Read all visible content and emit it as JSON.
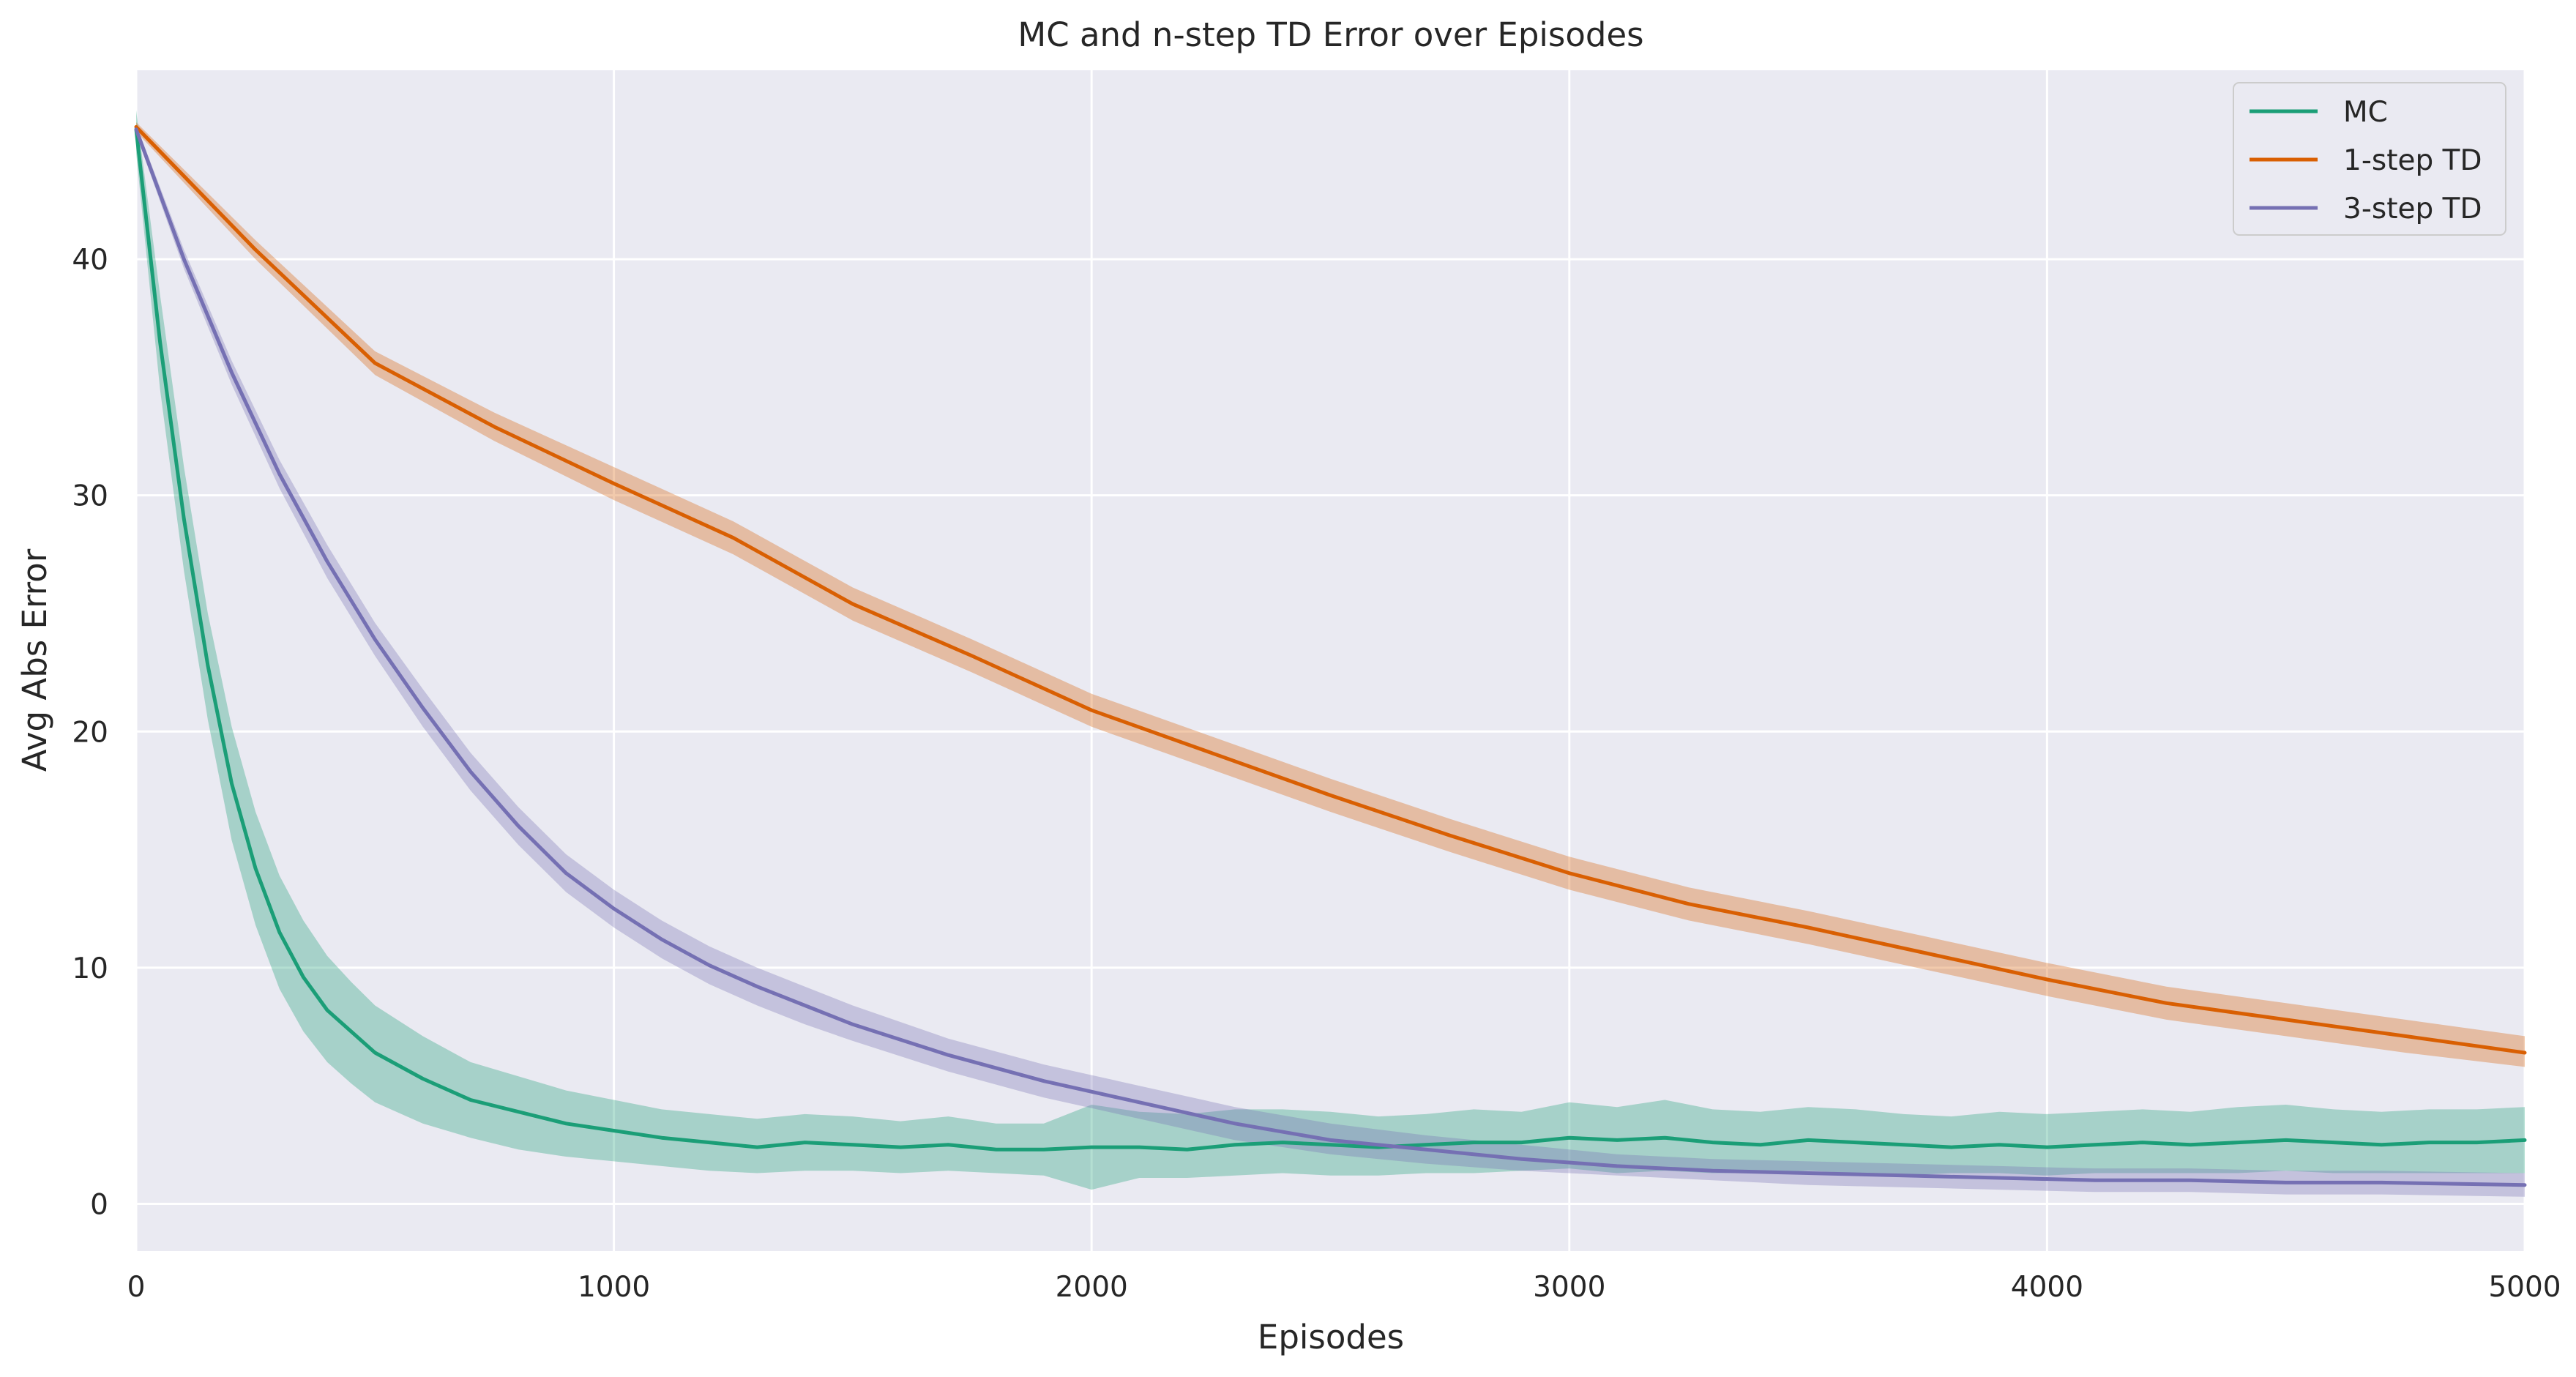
{
  "chart_data": {
    "type": "line",
    "title": "MC and n-step TD Error over Episodes",
    "xlabel": "Episodes",
    "ylabel": "Avg Abs Error",
    "xlim": [
      0,
      5000
    ],
    "ylim": [
      -2,
      48
    ],
    "xticks": [
      "0",
      "1000",
      "2000",
      "3000",
      "4000",
      "5000"
    ],
    "yticks": [
      "0",
      "10",
      "20",
      "30",
      "40"
    ],
    "grid": true,
    "background": "#eaeaf2",
    "legend_position": "top-right",
    "series": [
      {
        "name": "MC",
        "color": "#1b9e77",
        "x": [
          0,
          50,
          100,
          150,
          200,
          250,
          300,
          350,
          400,
          450,
          500,
          600,
          700,
          800,
          900,
          1000,
          1100,
          1200,
          1300,
          1400,
          1500,
          1600,
          1700,
          1800,
          1900,
          2000,
          2100,
          2200,
          2300,
          2400,
          2500,
          2600,
          2700,
          2800,
          2900,
          3000,
          3100,
          3200,
          3300,
          3400,
          3500,
          3600,
          3700,
          3800,
          3900,
          4000,
          4100,
          4200,
          4300,
          4400,
          4500,
          4600,
          4700,
          4800,
          4900,
          5000
        ],
        "y": [
          45.5,
          36.5,
          29.0,
          22.8,
          17.8,
          14.2,
          11.5,
          9.6,
          8.2,
          7.3,
          6.4,
          5.3,
          4.4,
          3.9,
          3.4,
          3.1,
          2.8,
          2.6,
          2.4,
          2.6,
          2.5,
          2.4,
          2.5,
          2.3,
          2.3,
          2.4,
          2.4,
          2.3,
          2.5,
          2.6,
          2.5,
          2.4,
          2.5,
          2.6,
          2.6,
          2.8,
          2.7,
          2.8,
          2.6,
          2.5,
          2.7,
          2.6,
          2.5,
          2.4,
          2.5,
          2.4,
          2.5,
          2.6,
          2.5,
          2.6,
          2.7,
          2.6,
          2.5,
          2.6,
          2.6,
          2.7
        ],
        "lower": [
          44.5,
          34.5,
          26.8,
          20.5,
          15.4,
          11.8,
          9.1,
          7.3,
          6.0,
          5.1,
          4.3,
          3.4,
          2.8,
          2.3,
          2.0,
          1.8,
          1.6,
          1.4,
          1.3,
          1.4,
          1.4,
          1.3,
          1.4,
          1.3,
          1.2,
          0.6,
          1.1,
          1.1,
          1.2,
          1.3,
          1.2,
          1.2,
          1.3,
          1.3,
          1.4,
          1.5,
          1.3,
          1.4,
          1.3,
          1.3,
          1.4,
          1.3,
          1.2,
          1.3,
          1.3,
          1.2,
          1.3,
          1.3,
          1.3,
          1.3,
          1.4,
          1.3,
          1.3,
          1.3,
          1.3,
          1.3
        ],
        "upper": [
          46.3,
          38.5,
          31.2,
          25.0,
          20.2,
          16.6,
          13.9,
          12.0,
          10.5,
          9.4,
          8.4,
          7.1,
          6.0,
          5.4,
          4.8,
          4.4,
          4.0,
          3.8,
          3.6,
          3.8,
          3.7,
          3.5,
          3.7,
          3.4,
          3.4,
          4.2,
          3.9,
          3.8,
          4.0,
          4.0,
          3.9,
          3.7,
          3.8,
          4.0,
          3.9,
          4.3,
          4.1,
          4.4,
          4.0,
          3.9,
          4.1,
          4.0,
          3.8,
          3.7,
          3.9,
          3.8,
          3.9,
          4.0,
          3.9,
          4.1,
          4.2,
          4.0,
          3.9,
          4.0,
          4.0,
          4.1
        ]
      },
      {
        "name": "1-step TD",
        "color": "#d95f02",
        "x": [
          0,
          250,
          500,
          750,
          1000,
          1250,
          1500,
          1750,
          2000,
          2250,
          2500,
          2750,
          3000,
          3250,
          3500,
          3750,
          4000,
          4250,
          4500,
          4750,
          5000
        ],
        "y": [
          45.6,
          40.4,
          35.6,
          32.9,
          30.5,
          28.2,
          25.4,
          23.2,
          20.9,
          19.1,
          17.3,
          15.6,
          14.0,
          12.7,
          11.7,
          10.6,
          9.5,
          8.5,
          7.8,
          7.1,
          6.4
        ],
        "lower": [
          45.4,
          40.0,
          35.1,
          32.3,
          29.8,
          27.5,
          24.7,
          22.5,
          20.2,
          18.4,
          16.6,
          14.9,
          13.3,
          12.0,
          11.0,
          9.9,
          8.8,
          7.8,
          7.1,
          6.4,
          5.8
        ],
        "upper": [
          45.8,
          40.8,
          36.1,
          33.5,
          31.2,
          28.9,
          26.1,
          23.9,
          21.6,
          19.8,
          18.0,
          16.3,
          14.7,
          13.4,
          12.4,
          11.3,
          10.2,
          9.2,
          8.5,
          7.8,
          7.1
        ]
      },
      {
        "name": "3-step TD",
        "color": "#7570b3",
        "x": [
          0,
          100,
          200,
          300,
          400,
          500,
          600,
          700,
          800,
          900,
          1000,
          1100,
          1200,
          1300,
          1400,
          1500,
          1700,
          1900,
          2100,
          2300,
          2500,
          2700,
          2900,
          3100,
          3300,
          3500,
          3700,
          3900,
          4100,
          4300,
          4500,
          4700,
          5000
        ],
        "y": [
          45.5,
          40.0,
          35.2,
          30.9,
          27.2,
          23.9,
          21.0,
          18.3,
          16.0,
          14.0,
          12.5,
          11.2,
          10.1,
          9.2,
          8.4,
          7.6,
          6.3,
          5.2,
          4.3,
          3.4,
          2.7,
          2.3,
          1.9,
          1.6,
          1.4,
          1.3,
          1.2,
          1.1,
          1.0,
          1.0,
          0.9,
          0.9,
          0.8
        ],
        "lower": [
          45.3,
          39.6,
          34.7,
          30.3,
          26.5,
          23.2,
          20.2,
          17.5,
          15.2,
          13.2,
          11.7,
          10.4,
          9.3,
          8.4,
          7.6,
          6.9,
          5.6,
          4.5,
          3.6,
          2.7,
          2.1,
          1.7,
          1.4,
          1.2,
          1.0,
          0.8,
          0.7,
          0.6,
          0.5,
          0.5,
          0.4,
          0.4,
          0.3
        ],
        "upper": [
          45.7,
          40.4,
          35.7,
          31.5,
          27.9,
          24.6,
          21.8,
          19.1,
          16.8,
          14.8,
          13.3,
          12.0,
          10.9,
          10.0,
          9.2,
          8.4,
          7.0,
          5.9,
          5.0,
          4.1,
          3.4,
          2.9,
          2.5,
          2.1,
          1.9,
          1.8,
          1.7,
          1.6,
          1.5,
          1.5,
          1.4,
          1.4,
          1.3
        ]
      }
    ]
  }
}
